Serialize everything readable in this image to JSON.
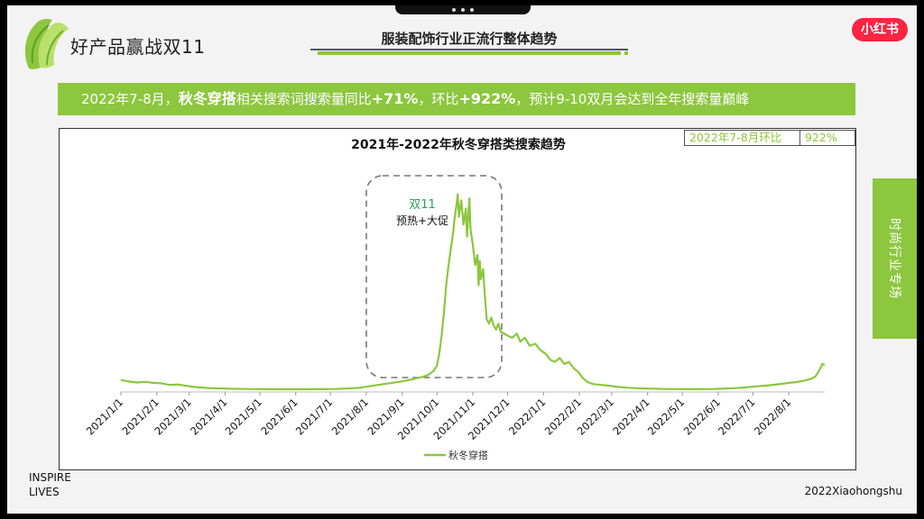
{
  "header": {
    "brand_title": "好产品赢战双11",
    "main_title": "服装配饰行业正流行整体趋势",
    "xhs_badge": "小红书"
  },
  "banner": {
    "part1": "2022年7-8月，",
    "keyword": "秋冬穿搭",
    "part2": "相关搜索词搜索量同比",
    "yoy": "+71%",
    "part3": "，环比",
    "mom": "+922%",
    "part4": "，预计9-10双月会达到全年搜索量巅峰"
  },
  "stat_box": {
    "label": "2022年7-8月环比",
    "value": "922%"
  },
  "side_tab": {
    "label": "时尚行业专场"
  },
  "footer": {
    "inspire_line1": "INSPIRE",
    "inspire_line2": "LIVES",
    "brand": "2022Xiaohongshu"
  },
  "colors": {
    "accent": "#8dc63f",
    "brand_red": "#ff2442",
    "annotation_green": "#2e9e5b"
  },
  "chart_data": {
    "type": "line",
    "title": "2021年-2022年秋冬穿搭类搜索趋势",
    "x_tick_labels": [
      "2021/1/1",
      "2021/2/1",
      "2021/3/1",
      "2021/4/1",
      "2021/5/1",
      "2021/6/1",
      "2021/7/1",
      "2021/8/1",
      "2021/9/1",
      "2021/10/1",
      "2021/11/1",
      "2021/12/1",
      "2022/1/1",
      "2022/2/1",
      "2022/3/1",
      "2022/4/1",
      "2022/5/1",
      "2022/6/1",
      "2022/7/1",
      "2022/8/1"
    ],
    "x_range": [
      "2021/1/1",
      "2022/9/1"
    ],
    "y_axis_shown": false,
    "legend_position": "bottom",
    "grid": false,
    "annotation": {
      "line1": "双11",
      "line2": "预热+大促"
    },
    "series": [
      {
        "name": "秋冬穿搭",
        "color": "#8dc63f",
        "points": [
          [
            "2021/1/1",
            5.0
          ],
          [
            "2021/1/8",
            4.3
          ],
          [
            "2021/1/15",
            3.8
          ],
          [
            "2021/1/22",
            4.1
          ],
          [
            "2021/1/29",
            3.6
          ],
          [
            "2021/2/5",
            3.4
          ],
          [
            "2021/2/12",
            2.6
          ],
          [
            "2021/2/19",
            2.8
          ],
          [
            "2021/2/26",
            2.2
          ],
          [
            "2021/3/5",
            1.6
          ],
          [
            "2021/3/12",
            1.3
          ],
          [
            "2021/3/19",
            1.0
          ],
          [
            "2021/3/26",
            0.9
          ],
          [
            "2021/4/5",
            0.7
          ],
          [
            "2021/4/15",
            0.6
          ],
          [
            "2021/4/25",
            0.55
          ],
          [
            "2021/5/5",
            0.5
          ],
          [
            "2021/5/15",
            0.45
          ],
          [
            "2021/5/25",
            0.45
          ],
          [
            "2021/6/5",
            0.45
          ],
          [
            "2021/6/15",
            0.5
          ],
          [
            "2021/6/25",
            0.5
          ],
          [
            "2021/7/5",
            0.6
          ],
          [
            "2021/7/15",
            0.8
          ],
          [
            "2021/7/25",
            1.1
          ],
          [
            "2021/8/1",
            1.7
          ],
          [
            "2021/8/8",
            2.3
          ],
          [
            "2021/8/15",
            2.9
          ],
          [
            "2021/8/22",
            3.5
          ],
          [
            "2021/8/29",
            4.1
          ],
          [
            "2021/9/3",
            4.6
          ],
          [
            "2021/9/8",
            5.2
          ],
          [
            "2021/9/13",
            5.9
          ],
          [
            "2021/9/18",
            6.5
          ],
          [
            "2021/9/23",
            7.4
          ],
          [
            "2021/9/28",
            9.5
          ],
          [
            "2021/10/1",
            12
          ],
          [
            "2021/10/3",
            18
          ],
          [
            "2021/10/5",
            27
          ],
          [
            "2021/10/7",
            38
          ],
          [
            "2021/10/9",
            52
          ],
          [
            "2021/10/11",
            62
          ],
          [
            "2021/10/13",
            70
          ],
          [
            "2021/10/15",
            78
          ],
          [
            "2021/10/16",
            84
          ],
          [
            "2021/10/18",
            92
          ],
          [
            "2021/10/19",
            97
          ],
          [
            "2021/10/20",
            86
          ],
          [
            "2021/10/22",
            94
          ],
          [
            "2021/10/24",
            82
          ],
          [
            "2021/10/26",
            90
          ],
          [
            "2021/10/27",
            76
          ],
          [
            "2021/10/29",
            95
          ],
          [
            "2021/10/30",
            80
          ],
          [
            "2021/11/1",
            72
          ],
          [
            "2021/11/3",
            62
          ],
          [
            "2021/11/5",
            67
          ],
          [
            "2021/11/6",
            52
          ],
          [
            "2021/11/7",
            64
          ],
          [
            "2021/11/8",
            55
          ],
          [
            "2021/11/10",
            60
          ],
          [
            "2021/11/11",
            50
          ],
          [
            "2021/11/13",
            35
          ],
          [
            "2021/11/15",
            33
          ],
          [
            "2021/11/17",
            36
          ],
          [
            "2021/11/19",
            32
          ],
          [
            "2021/11/21",
            30
          ],
          [
            "2021/11/23",
            33
          ],
          [
            "2021/11/25",
            29
          ],
          [
            "2021/12/1",
            27
          ],
          [
            "2021/12/5",
            26
          ],
          [
            "2021/12/9",
            28
          ],
          [
            "2021/12/12",
            24
          ],
          [
            "2021/12/16",
            26
          ],
          [
            "2021/12/20",
            22
          ],
          [
            "2021/12/25",
            23
          ],
          [
            "2021/12/29",
            20
          ],
          [
            "2022/1/3",
            18
          ],
          [
            "2022/1/7",
            15
          ],
          [
            "2022/1/11",
            14
          ],
          [
            "2022/1/15",
            16
          ],
          [
            "2022/1/19",
            13
          ],
          [
            "2022/1/23",
            14
          ],
          [
            "2022/1/27",
            11
          ],
          [
            "2022/1/31",
            9
          ],
          [
            "2022/2/4",
            6
          ],
          [
            "2022/2/8",
            4
          ],
          [
            "2022/2/13",
            3
          ],
          [
            "2022/2/20",
            2.6
          ],
          [
            "2022/2/27",
            2.2
          ],
          [
            "2022/3/6",
            1.6
          ],
          [
            "2022/3/15",
            1.2
          ],
          [
            "2022/3/25",
            0.9
          ],
          [
            "2022/4/5",
            0.7
          ],
          [
            "2022/4/15",
            0.6
          ],
          [
            "2022/4/25",
            0.55
          ],
          [
            "2022/5/5",
            0.5
          ],
          [
            "2022/5/15",
            0.5
          ],
          [
            "2022/5/25",
            0.55
          ],
          [
            "2022/6/5",
            0.7
          ],
          [
            "2022/6/15",
            1.0
          ],
          [
            "2022/6/25",
            1.4
          ],
          [
            "2022/7/5",
            1.9
          ],
          [
            "2022/7/15",
            2.4
          ],
          [
            "2022/7/25",
            3.1
          ],
          [
            "2022/8/1",
            3.6
          ],
          [
            "2022/8/8",
            4.0
          ],
          [
            "2022/8/15",
            4.8
          ],
          [
            "2022/8/20",
            5.6
          ],
          [
            "2022/8/24",
            6.8
          ],
          [
            "2022/8/27",
            9.5
          ],
          [
            "2022/8/30",
            13
          ],
          [
            "2022/9/1",
            12.5
          ]
        ]
      }
    ]
  }
}
